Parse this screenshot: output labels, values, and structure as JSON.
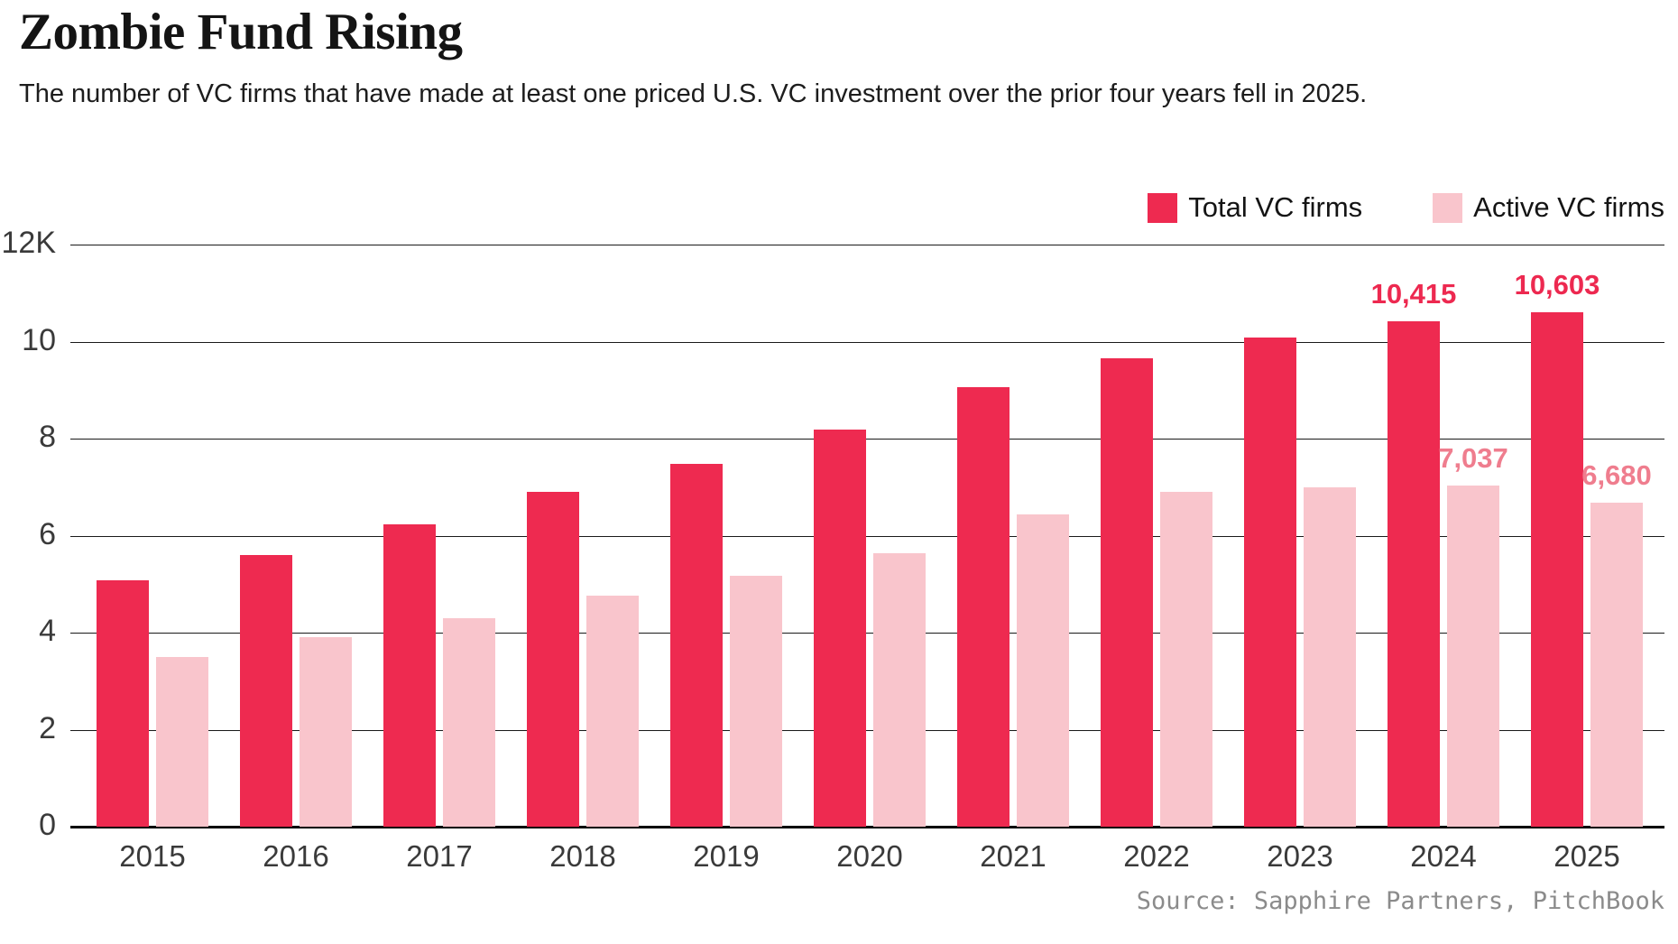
{
  "header": {
    "title": "Zombie Fund Rising",
    "subtitle": "The number of VC firms that have made at least one priced U.S. VC investment over the prior four years fell in 2025."
  },
  "footer": {
    "source": "Source: Sapphire Partners, PitchBook"
  },
  "colors": {
    "total_bar": "#EE2A50",
    "active_bar": "#F9C5CC",
    "total_value_label": "#ED2950",
    "active_value_label": "#EF7D8E",
    "gridline": "#1a1a1a",
    "baseline": "#000000",
    "axis_text": "#3a3a3a"
  },
  "chart_data": {
    "type": "bar",
    "title": "Zombie Fund Rising",
    "subtitle": "The number of VC firms that have made at least one priced U.S. VC investment over the prior four years fell in 2025.",
    "categories": [
      "2015",
      "2016",
      "2017",
      "2018",
      "2019",
      "2020",
      "2021",
      "2022",
      "2023",
      "2024",
      "2025"
    ],
    "series": [
      {
        "name": "Total VC firms",
        "color_key": "total_bar",
        "label_color_key": "total_value_label",
        "values": [
          5080,
          5600,
          6240,
          6900,
          7480,
          8180,
          9060,
          9660,
          10080,
          10415,
          10603
        ],
        "value_labels": [
          null,
          null,
          null,
          null,
          null,
          null,
          null,
          null,
          null,
          "10,415",
          "10,603"
        ]
      },
      {
        "name": "Active VC firms",
        "color_key": "active_bar",
        "label_color_key": "active_value_label",
        "values": [
          3500,
          3900,
          4300,
          4760,
          5180,
          5640,
          6440,
          6900,
          7000,
          7037,
          6680
        ],
        "value_labels": [
          null,
          null,
          null,
          null,
          null,
          null,
          null,
          null,
          null,
          "7,037",
          "6,680"
        ]
      }
    ],
    "ylim": [
      0,
      12000
    ],
    "yticks": [
      {
        "value": 0,
        "label": "0"
      },
      {
        "value": 2000,
        "label": "2"
      },
      {
        "value": 4000,
        "label": "4"
      },
      {
        "value": 6000,
        "label": "6"
      },
      {
        "value": 8000,
        "label": "8"
      },
      {
        "value": 10000,
        "label": "10"
      },
      {
        "value": 12000,
        "label": "12K"
      }
    ],
    "grid": "horizontal",
    "legend_position": "top-right",
    "source": "Source: Sapphire Partners, PitchBook"
  }
}
